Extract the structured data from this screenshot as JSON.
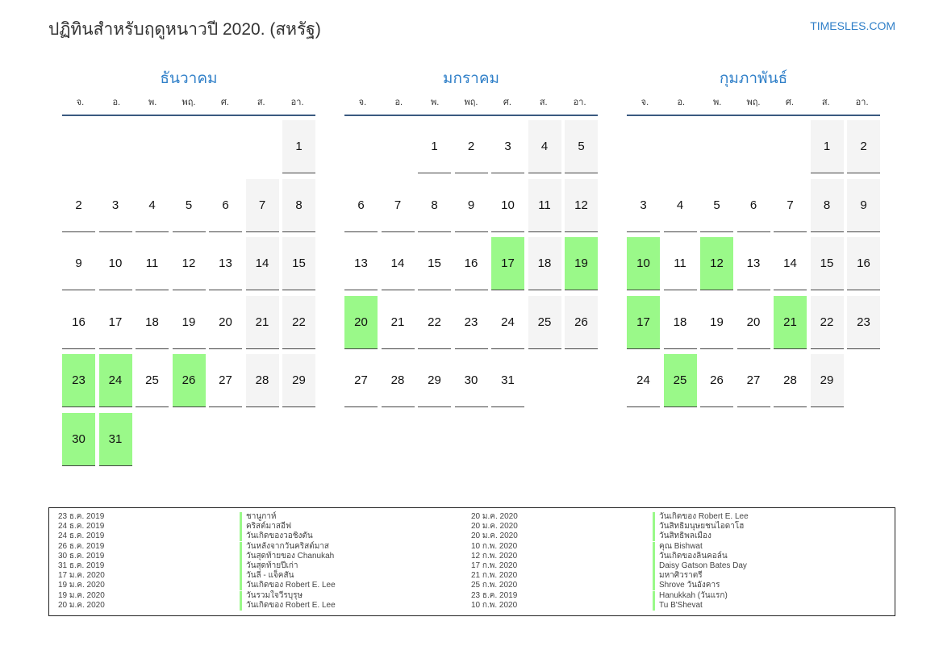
{
  "header": {
    "title": "ปฏิทินสำหรับฤดูหนาวปี 2020. (สหรัฐ)",
    "site": "TIMESLES.COM"
  },
  "weekdays": [
    "จ.",
    "อ.",
    "พ.",
    "พฤ.",
    "ศ.",
    "ส.",
    "อา."
  ],
  "colors": {
    "holiday": "#9af989",
    "weekend": "#f4f4f4",
    "accent": "#2f7fc8"
  },
  "months": [
    {
      "name": "ธันวาคม",
      "offset": 6,
      "days": 31,
      "holidays": [
        23,
        24,
        26,
        30,
        31
      ]
    },
    {
      "name": "มกราคม",
      "offset": 2,
      "days": 31,
      "holidays": [
        17,
        19,
        20
      ]
    },
    {
      "name": "กุมภาพันธ์",
      "offset": 5,
      "days": 29,
      "holidays": [
        10,
        12,
        17,
        21,
        25
      ]
    }
  ],
  "legend": [
    [
      {
        "date": "23 ธ.ค. 2019",
        "name": "ชานูกาห์"
      },
      {
        "date": "24 ธ.ค. 2019",
        "name": "คริสต์มาสอีฟ"
      },
      {
        "date": "24 ธ.ค. 2019",
        "name": "วันเกิดของวอชิงตัน"
      },
      {
        "date": "26 ธ.ค. 2019",
        "name": "วันหลังจากวันคริสต์มาส"
      },
      {
        "date": "30 ธ.ค. 2019",
        "name": "วันสุดท้ายของ Chanukah"
      },
      {
        "date": "31 ธ.ค. 2019",
        "name": "วันสุดท้ายปีเก่า"
      },
      {
        "date": "17 ม.ค. 2020",
        "name": "วันลี - แจ็คสัน"
      },
      {
        "date": "19 ม.ค. 2020",
        "name": "วันเกิดของ Robert E. Lee"
      },
      {
        "date": "19 ม.ค. 2020",
        "name": "วันรวมใจวีรบุรุษ"
      },
      {
        "date": "20 ม.ค. 2020",
        "name": "วันเกิดของ Robert E. Lee"
      }
    ],
    [
      {
        "date": "20 ม.ค. 2020",
        "name": "วันเกิดของ Robert E. Lee"
      },
      {
        "date": "20 ม.ค. 2020",
        "name": "วันสิทธิมนุษยชนไอดาโฮ"
      },
      {
        "date": "20 ม.ค. 2020",
        "name": "วันสิทธิพลเมือง"
      },
      {
        "date": "10 ก.พ. 2020",
        "name": "คุณ Bishwat"
      },
      {
        "date": "12 ก.พ. 2020",
        "name": "วันเกิดของลินคอล์น"
      },
      {
        "date": "17 ก.พ. 2020",
        "name": "Daisy Gatson Bates Day"
      },
      {
        "date": "21 ก.พ. 2020",
        "name": "มหาศิวราตรี"
      },
      {
        "date": "25 ก.พ. 2020",
        "name": "Shrove วันอังคาร"
      },
      {
        "date": "23 ธ.ค. 2019",
        "name": "Hanukkah (วันแรก)"
      },
      {
        "date": "10 ก.พ. 2020",
        "name": "Tu B'Shevat"
      }
    ]
  ]
}
